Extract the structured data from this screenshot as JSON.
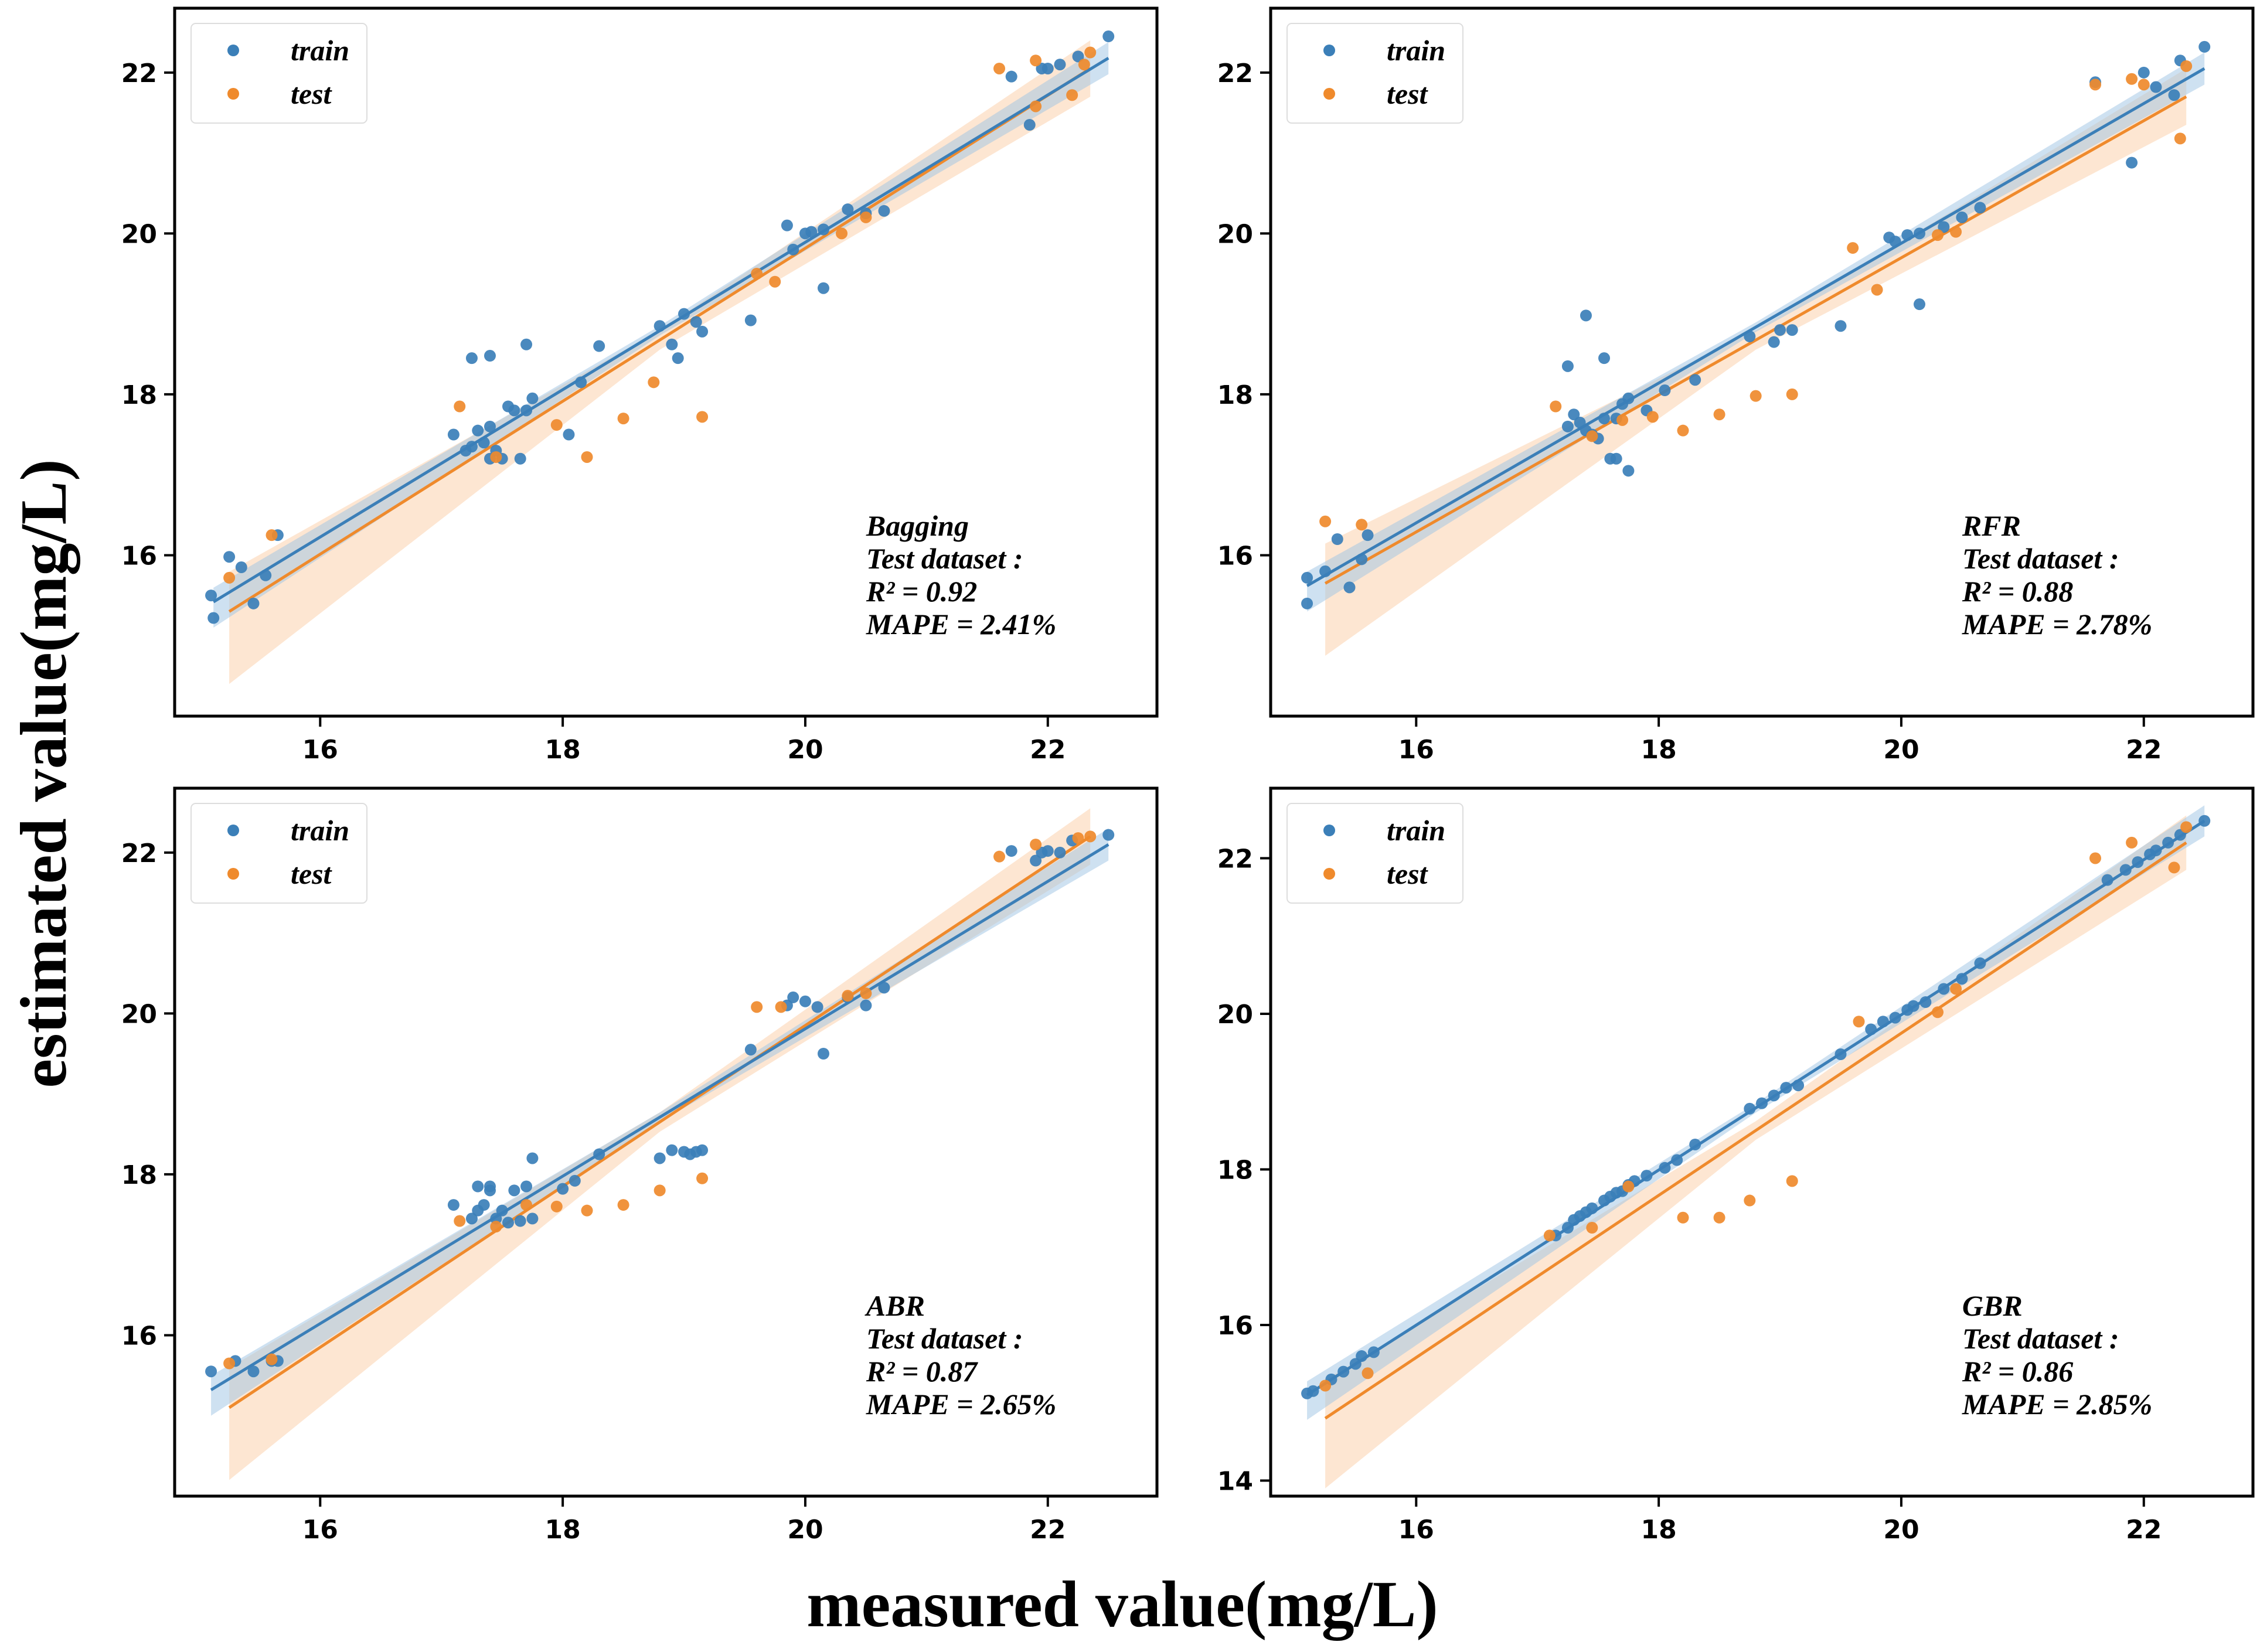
{
  "figure": {
    "xlabel": "measured value(mg/L)",
    "ylabel": "estimated value(mg/L)"
  },
  "legend": {
    "train": "train",
    "test": "test"
  },
  "colors": {
    "train": "#3b7fb8",
    "test": "#ef8a2c",
    "train_band": "#9ec3e3",
    "test_band": "#fbd2ad"
  },
  "chart_data": [
    {
      "type": "scatter",
      "title": "Bagging",
      "annotations": {
        "model": "Bagging",
        "dataset": "Test dataset :",
        "r2": "R² = 0.92",
        "mape": "MAPE = 2.41%"
      },
      "xlim": [
        14.8,
        22.9
      ],
      "ylim": [
        14.0,
        22.8
      ],
      "xticks": [
        16,
        18,
        20,
        22
      ],
      "yticks": [
        16,
        18,
        20,
        22
      ],
      "series": [
        {
          "name": "train",
          "x": [
            15.1,
            15.12,
            15.25,
            15.35,
            15.45,
            15.55,
            15.65,
            17.1,
            17.2,
            17.25,
            17.3,
            17.35,
            17.4,
            17.4,
            17.45,
            17.5,
            17.55,
            17.6,
            17.65,
            17.7,
            17.75,
            17.25,
            17.4,
            17.7,
            18.05,
            18.15,
            18.3,
            18.8,
            18.9,
            18.95,
            19.0,
            19.1,
            19.15,
            19.55,
            19.85,
            19.9,
            20.0,
            20.05,
            20.15,
            20.15,
            20.35,
            20.5,
            20.65,
            21.7,
            21.85,
            21.95,
            22.0,
            22.1,
            22.25,
            22.5
          ],
          "y": [
            15.5,
            15.22,
            15.98,
            15.85,
            15.4,
            15.75,
            16.25,
            17.5,
            17.3,
            17.35,
            17.55,
            17.4,
            17.2,
            17.6,
            17.3,
            17.2,
            17.85,
            17.8,
            17.2,
            17.8,
            17.95,
            18.45,
            18.48,
            18.62,
            17.5,
            18.15,
            18.6,
            18.85,
            18.62,
            18.45,
            19.0,
            18.9,
            18.78,
            18.92,
            20.1,
            19.8,
            20.0,
            20.02,
            20.05,
            19.32,
            20.3,
            20.25,
            20.28,
            21.95,
            21.35,
            22.05,
            22.05,
            22.1,
            22.2,
            22.45
          ]
        },
        {
          "name": "test",
          "x": [
            15.25,
            15.6,
            17.15,
            17.45,
            17.95,
            18.2,
            18.5,
            18.75,
            19.15,
            19.6,
            19.75,
            20.3,
            20.5,
            21.6,
            21.9,
            21.9,
            22.2,
            22.3,
            22.35
          ],
          "y": [
            15.72,
            16.25,
            17.85,
            17.22,
            17.62,
            17.22,
            17.7,
            18.15,
            17.72,
            19.5,
            19.4,
            20.0,
            20.2,
            22.05,
            22.15,
            21.58,
            21.72,
            22.1,
            22.25
          ]
        }
      ],
      "fits": {
        "train": {
          "x": [
            15.12,
            22.5
          ],
          "y": [
            15.42,
            22.18
          ]
        },
        "test": {
          "x": [
            15.25,
            22.35
          ],
          "y": [
            15.3,
            22.05
          ]
        }
      }
    },
    {
      "type": "scatter",
      "title": "RFR",
      "annotations": {
        "model": "RFR",
        "dataset": "Test dataset :",
        "r2": "R² = 0.88",
        "mape": "MAPE = 2.78%"
      },
      "xlim": [
        14.8,
        22.9
      ],
      "ylim": [
        14.0,
        22.8
      ],
      "xticks": [
        16,
        18,
        20,
        22
      ],
      "yticks": [
        16,
        18,
        20,
        22
      ],
      "series": [
        {
          "name": "train",
          "x": [
            15.1,
            15.1,
            15.25,
            15.35,
            15.45,
            15.55,
            15.6,
            17.25,
            17.3,
            17.35,
            17.4,
            17.45,
            17.5,
            17.55,
            17.6,
            17.65,
            17.7,
            17.75,
            17.25,
            17.4,
            17.55,
            17.65,
            17.75,
            17.9,
            18.05,
            18.3,
            18.75,
            18.95,
            19.0,
            19.1,
            19.5,
            19.9,
            19.95,
            20.05,
            20.15,
            20.15,
            20.35,
            20.5,
            20.65,
            21.6,
            21.9,
            22.0,
            22.1,
            22.25,
            22.3,
            22.5
          ],
          "y": [
            15.72,
            15.4,
            15.8,
            16.2,
            15.6,
            15.95,
            16.25,
            17.6,
            17.75,
            17.65,
            17.55,
            17.5,
            17.45,
            17.7,
            17.2,
            17.2,
            17.88,
            17.05,
            18.35,
            18.98,
            18.45,
            17.7,
            17.95,
            17.8,
            18.05,
            18.18,
            18.72,
            18.65,
            18.8,
            18.8,
            18.85,
            19.95,
            19.9,
            19.98,
            20.0,
            19.12,
            20.08,
            20.2,
            20.32,
            21.88,
            20.88,
            22.0,
            21.82,
            21.72,
            22.15,
            22.32
          ]
        },
        {
          "name": "test",
          "x": [
            15.25,
            15.55,
            17.15,
            17.45,
            17.7,
            17.95,
            18.2,
            18.5,
            18.8,
            19.1,
            19.6,
            19.8,
            20.3,
            20.45,
            21.6,
            21.9,
            22.0,
            22.3,
            22.35
          ],
          "y": [
            16.42,
            16.38,
            17.85,
            17.48,
            17.68,
            17.72,
            17.55,
            17.75,
            17.98,
            18.0,
            19.82,
            19.3,
            19.98,
            20.02,
            21.85,
            21.92,
            21.85,
            21.18,
            22.08
          ]
        }
      ],
      "fits": {
        "train": {
          "x": [
            15.1,
            22.5
          ],
          "y": [
            15.62,
            22.05
          ]
        },
        "test": {
          "x": [
            15.25,
            22.35
          ],
          "y": [
            15.65,
            21.7
          ]
        }
      }
    },
    {
      "type": "scatter",
      "title": "ABR",
      "annotations": {
        "model": "ABR",
        "dataset": "Test dataset :",
        "r2": "R² = 0.87",
        "mape": "MAPE = 2.65%"
      },
      "xlim": [
        14.8,
        22.9
      ],
      "ylim": [
        14.0,
        22.8
      ],
      "xticks": [
        16,
        18,
        20,
        22
      ],
      "yticks": [
        16,
        18,
        20,
        22
      ],
      "series": [
        {
          "name": "train",
          "x": [
            15.1,
            15.3,
            15.45,
            15.6,
            15.65,
            17.1,
            17.25,
            17.3,
            17.35,
            17.4,
            17.45,
            17.5,
            17.55,
            17.6,
            17.65,
            17.7,
            17.75,
            17.3,
            17.4,
            17.75,
            18.0,
            18.1,
            18.3,
            18.8,
            18.9,
            19.0,
            19.05,
            19.1,
            19.15,
            19.55,
            19.85,
            19.9,
            20.0,
            20.1,
            20.15,
            20.35,
            20.5,
            20.65,
            21.7,
            21.9,
            21.95,
            22.0,
            22.1,
            22.2,
            22.5
          ],
          "y": [
            15.55,
            15.68,
            15.55,
            15.68,
            15.68,
            17.62,
            17.45,
            17.55,
            17.62,
            17.85,
            17.45,
            17.55,
            17.4,
            17.8,
            17.42,
            17.85,
            17.45,
            17.85,
            17.8,
            18.2,
            17.82,
            17.92,
            18.25,
            18.2,
            18.3,
            18.28,
            18.25,
            18.28,
            18.3,
            19.55,
            20.1,
            20.2,
            20.15,
            20.08,
            19.5,
            20.2,
            20.1,
            20.32,
            22.02,
            21.9,
            22.0,
            22.02,
            22.0,
            22.15,
            22.22
          ]
        },
        {
          "name": "test",
          "x": [
            15.25,
            15.6,
            17.15,
            17.45,
            17.7,
            17.95,
            18.2,
            18.5,
            18.8,
            19.15,
            19.6,
            19.8,
            20.35,
            20.5,
            21.6,
            21.9,
            22.25,
            22.35
          ],
          "y": [
            15.65,
            15.7,
            17.42,
            17.35,
            17.62,
            17.6,
            17.55,
            17.62,
            17.8,
            17.95,
            20.08,
            20.08,
            20.22,
            20.25,
            21.95,
            22.1,
            22.18,
            22.2
          ]
        }
      ],
      "fits": {
        "train": {
          "x": [
            15.1,
            22.5
          ],
          "y": [
            15.32,
            22.1
          ]
        },
        "test": {
          "x": [
            15.25,
            22.35
          ],
          "y": [
            15.1,
            22.2
          ]
        }
      }
    },
    {
      "type": "scatter",
      "title": "GBR",
      "annotations": {
        "model": "GBR",
        "dataset": "Test dataset :",
        "r2": "R² = 0.86",
        "mape": "MAPE = 2.85%"
      },
      "xlim": [
        14.8,
        22.9
      ],
      "ylim": [
        13.8,
        22.9
      ],
      "xticks": [
        16,
        18,
        20,
        22
      ],
      "yticks": [
        14,
        16,
        18,
        20,
        22
      ],
      "series": [
        {
          "name": "train",
          "x": [
            15.1,
            15.15,
            15.3,
            15.4,
            15.5,
            15.55,
            15.65,
            17.15,
            17.25,
            17.3,
            17.35,
            17.4,
            17.45,
            17.55,
            17.6,
            17.65,
            17.7,
            17.75,
            17.8,
            17.9,
            18.05,
            18.15,
            18.3,
            18.75,
            18.85,
            18.95,
            19.05,
            19.15,
            19.5,
            19.75,
            19.85,
            19.95,
            20.05,
            20.1,
            20.2,
            20.35,
            20.5,
            20.65,
            21.7,
            21.85,
            21.95,
            22.05,
            22.1,
            22.2,
            22.3,
            22.5
          ],
          "y": [
            15.12,
            15.15,
            15.3,
            15.4,
            15.5,
            15.6,
            15.65,
            17.15,
            17.25,
            17.35,
            17.4,
            17.45,
            17.5,
            17.6,
            17.65,
            17.7,
            17.72,
            17.8,
            17.85,
            17.92,
            18.02,
            18.12,
            18.32,
            18.78,
            18.85,
            18.95,
            19.05,
            19.08,
            19.48,
            19.8,
            19.9,
            19.95,
            20.05,
            20.1,
            20.15,
            20.32,
            20.45,
            20.65,
            21.72,
            21.85,
            21.95,
            22.05,
            22.1,
            22.2,
            22.3,
            22.48
          ]
        },
        {
          "name": "test",
          "x": [
            15.25,
            15.6,
            17.1,
            17.45,
            17.75,
            18.2,
            18.5,
            18.75,
            19.1,
            19.65,
            20.3,
            20.45,
            21.6,
            21.9,
            22.25,
            22.35
          ],
          "y": [
            15.22,
            15.38,
            17.15,
            17.25,
            17.78,
            17.38,
            17.38,
            17.6,
            17.85,
            19.9,
            20.02,
            20.32,
            22.0,
            22.2,
            21.88,
            22.4
          ]
        }
      ],
      "fits": {
        "train": {
          "x": [
            15.1,
            22.5
          ],
          "y": [
            15.1,
            22.48
          ]
        },
        "test": {
          "x": [
            15.25,
            22.35
          ],
          "y": [
            14.8,
            22.2
          ]
        }
      }
    }
  ]
}
